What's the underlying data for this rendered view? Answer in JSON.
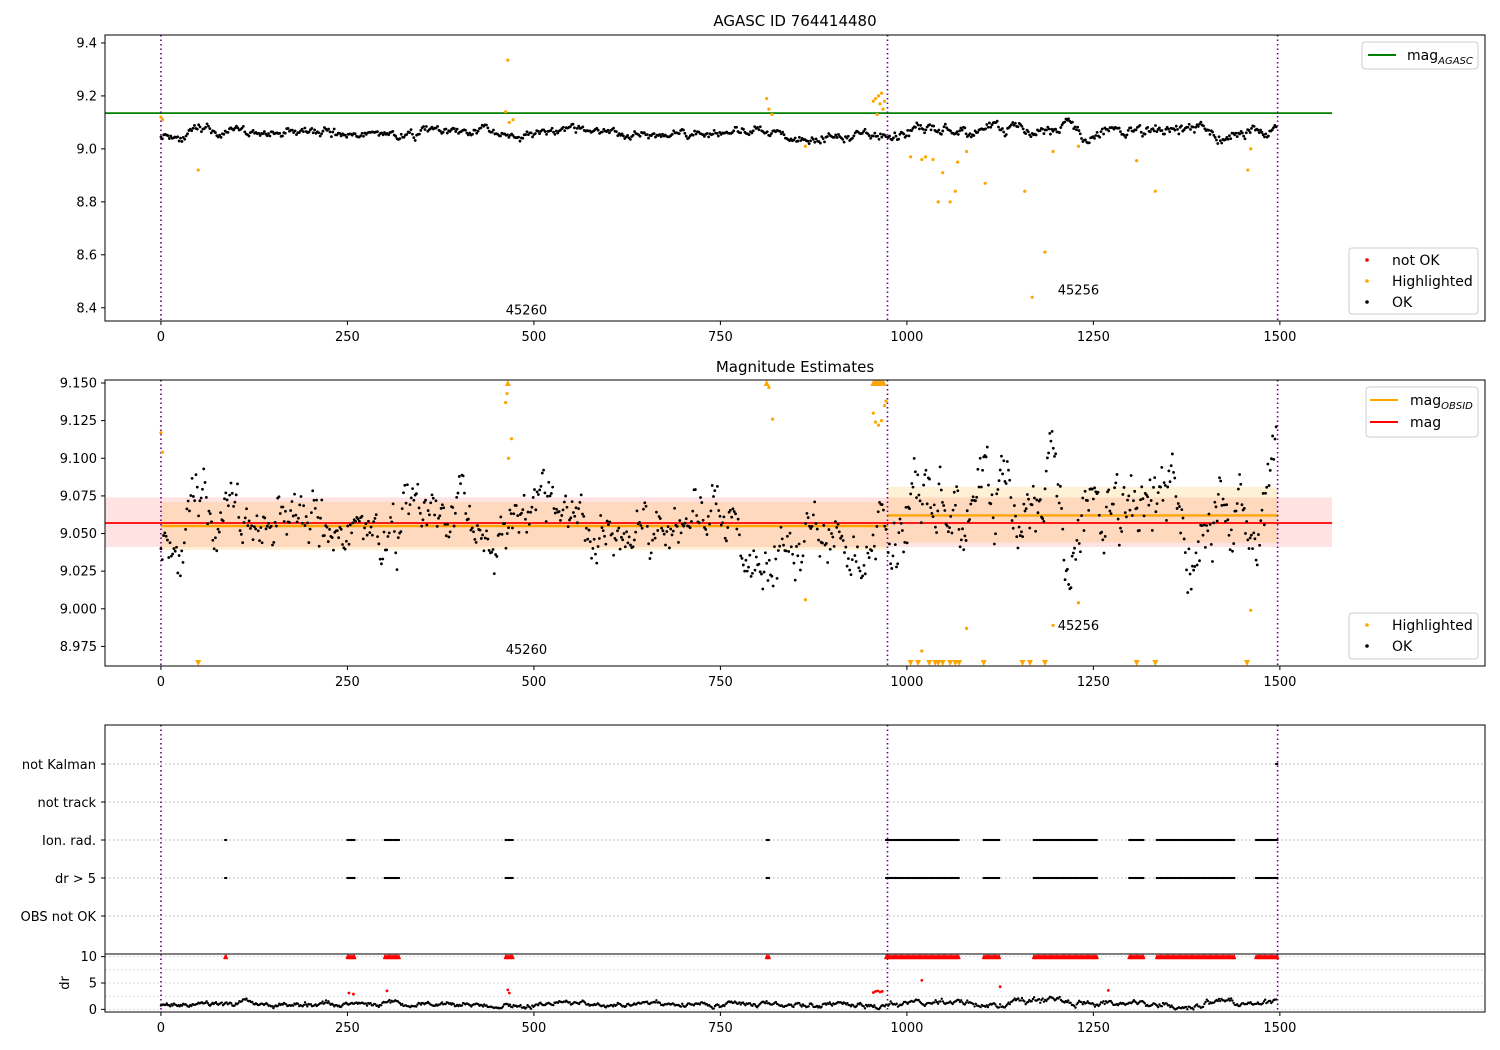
{
  "chart_data": [
    {
      "type": "scatter",
      "title": "AGASC ID 764414480",
      "xlim": [
        -75,
        1775
      ],
      "ylim": [
        8.35,
        9.43
      ],
      "xticks": [
        0,
        250,
        500,
        750,
        1000,
        1250,
        1500
      ],
      "yticks": [
        8.4,
        8.6,
        8.8,
        9.0,
        9.2,
        9.4
      ],
      "ytick_labels": [
        "8.4",
        "8.6",
        "8.8",
        "9.0",
        "9.2",
        "9.4"
      ],
      "obsid_boundaries": [
        0,
        974,
        1497
      ],
      "obsid_labels": [
        {
          "text": "45260",
          "x": 490,
          "y": 8.375
        },
        {
          "text": "45256",
          "x": 1230,
          "y": 8.45
        }
      ],
      "hline": {
        "name": "mag",
        "name_sub": "AGASC",
        "y": 9.135,
        "x": [
          -75,
          1570
        ],
        "color": "#008000"
      },
      "legend_top": [
        {
          "label": "mag",
          "label_sub": "AGASC",
          "style": "line",
          "color": "#008000"
        }
      ],
      "legend_bottom": [
        {
          "label": "not OK",
          "style": "dot",
          "color": "#ff0000"
        },
        {
          "label": "Highlighted",
          "style": "dot",
          "color": "#ffa500"
        },
        {
          "label": "OK",
          "style": "dot",
          "color": "#000000"
        }
      ],
      "highlighted": [
        [
          0,
          9.12
        ],
        [
          2,
          9.11
        ],
        [
          50,
          8.92
        ],
        [
          462,
          9.14
        ],
        [
          465,
          9.335
        ],
        [
          467,
          9.1
        ],
        [
          472,
          9.11
        ],
        [
          812,
          9.19
        ],
        [
          815,
          9.15
        ],
        [
          819,
          9.13
        ],
        [
          864,
          9.01
        ],
        [
          955,
          9.18
        ],
        [
          958,
          9.19
        ],
        [
          960,
          9.13
        ],
        [
          962,
          9.2
        ],
        [
          964,
          9.17
        ],
        [
          966,
          9.21
        ],
        [
          968,
          9.15
        ],
        [
          970,
          9.18
        ],
        [
          1005,
          8.97
        ],
        [
          1020,
          8.96
        ],
        [
          1025,
          8.97
        ],
        [
          1035,
          8.96
        ],
        [
          1042,
          8.8
        ],
        [
          1048,
          8.91
        ],
        [
          1058,
          8.8
        ],
        [
          1065,
          8.84
        ],
        [
          1068,
          8.95
        ],
        [
          1080,
          8.99
        ],
        [
          1105,
          8.87
        ],
        [
          1158,
          8.84
        ],
        [
          1168,
          8.44
        ],
        [
          1185,
          8.61
        ],
        [
          1196,
          8.99
        ],
        [
          1230,
          9.01
        ],
        [
          1308,
          8.955
        ],
        [
          1333,
          8.84
        ],
        [
          1457,
          8.92
        ],
        [
          1461,
          9.0
        ]
      ],
      "ok_segments": [
        {
          "x0": 0,
          "x1": 972,
          "n": 520,
          "base": 9.058,
          "amp": 0.028,
          "seed": 11
        },
        {
          "x0": 975,
          "x1": 1495,
          "n": 300,
          "base": 9.065,
          "amp": 0.035,
          "seed": 23
        }
      ]
    },
    {
      "type": "scatter",
      "title": "Magnitude Estimates",
      "xlim": [
        -75,
        1775
      ],
      "ylim": [
        8.962,
        9.152
      ],
      "xticks": [
        0,
        250,
        500,
        750,
        1000,
        1250,
        1500
      ],
      "yticks": [
        8.975,
        9.0,
        9.025,
        9.05,
        9.075,
        9.1,
        9.125,
        9.15
      ],
      "ytick_labels": [
        "8.975",
        "9.000",
        "9.025",
        "9.050",
        "9.075",
        "9.100",
        "9.125",
        "9.150"
      ],
      "obsid_boundaries": [
        0,
        974,
        1497
      ],
      "obsid_labels": [
        {
          "text": "45260",
          "x": 490,
          "y": 8.97
        },
        {
          "text": "45256",
          "x": 1230,
          "y": 8.986
        }
      ],
      "mag": {
        "y": 9.057,
        "band": [
          9.041,
          9.074
        ],
        "x": [
          -75,
          1570
        ],
        "color": "#ff0000"
      },
      "mag_obsid": [
        {
          "x": [
            0,
            974
          ],
          "y": 9.055,
          "band": [
            9.039,
            9.071
          ]
        },
        {
          "x": [
            974,
            1497
          ],
          "y": 9.062,
          "band": [
            9.044,
            9.081
          ]
        }
      ],
      "legend_top": [
        {
          "label": "mag",
          "label_sub": "OBSID",
          "style": "line",
          "color": "#ffa500"
        },
        {
          "label": "mag",
          "style": "line",
          "color": "#ff0000"
        }
      ],
      "legend_bottom": [
        {
          "label": "Highlighted",
          "style": "dot",
          "color": "#ffa500"
        },
        {
          "label": "OK",
          "style": "dot",
          "color": "#000000"
        }
      ],
      "highlighted": [
        [
          0,
          9.117
        ],
        [
          2,
          9.104
        ],
        [
          462,
          9.137
        ],
        [
          464,
          9.143
        ],
        [
          466,
          9.1
        ],
        [
          470,
          9.113
        ],
        [
          815,
          9.147
        ],
        [
          820,
          9.126
        ],
        [
          864,
          9.006
        ],
        [
          955,
          9.13
        ],
        [
          958,
          9.124
        ],
        [
          962,
          9.122
        ],
        [
          966,
          9.125
        ],
        [
          970,
          9.135
        ],
        [
          972,
          9.138
        ],
        [
          1020,
          8.972
        ],
        [
          1080,
          8.987
        ],
        [
          1196,
          8.989
        ],
        [
          1230,
          9.004
        ],
        [
          1461,
          8.999
        ]
      ],
      "clipped_top": [
        465,
        812,
        955,
        957,
        959,
        961,
        963,
        965,
        967,
        969
      ],
      "clipped_bottom": [
        50,
        1005,
        1015,
        1030,
        1038,
        1042,
        1048,
        1058,
        1065,
        1070,
        1103,
        1155,
        1165,
        1185,
        1308,
        1333,
        1456
      ],
      "ok_segments": [
        {
          "x0": 0,
          "x1": 972,
          "n": 560,
          "base": 9.054,
          "amp": 0.03,
          "seed": 11
        },
        {
          "x0": 975,
          "x1": 1495,
          "n": 330,
          "base": 9.062,
          "amp": 0.04,
          "seed": 23
        }
      ]
    },
    {
      "type": "flags",
      "xlim": [
        -75,
        1775
      ],
      "categories": [
        "not Kalman",
        "not track",
        "Ion. rad.",
        "dr > 5",
        "OBS not OK"
      ],
      "obsid_boundaries": [
        0,
        974,
        1497
      ],
      "flag_ranges": {
        "not Kalman": [
          [
            1495,
            1497
          ]
        ],
        "Ion. rad.": [
          [
            86,
            88
          ],
          [
            250,
            260
          ],
          [
            300,
            320
          ],
          [
            462,
            472
          ],
          [
            812,
            816
          ],
          [
            972,
            1070
          ],
          [
            1103,
            1125
          ],
          [
            1170,
            1255
          ],
          [
            1298,
            1318
          ],
          [
            1335,
            1440
          ],
          [
            1468,
            1497
          ]
        ],
        "dr > 5": [
          [
            86,
            88
          ],
          [
            250,
            260
          ],
          [
            300,
            320
          ],
          [
            462,
            472
          ],
          [
            812,
            816
          ],
          [
            972,
            1070
          ],
          [
            1103,
            1125
          ],
          [
            1170,
            1255
          ],
          [
            1298,
            1318
          ],
          [
            1335,
            1440
          ],
          [
            1468,
            1497
          ]
        ]
      }
    },
    {
      "type": "scatter",
      "ylabel": "dr",
      "xlim": [
        -75,
        1775
      ],
      "ylim": [
        -0.5,
        10.5
      ],
      "xticks": [
        0,
        250,
        500,
        750,
        1000,
        1250,
        1500
      ],
      "yticks": [
        0,
        5,
        10
      ],
      "ytick_labels": [
        "0",
        "5",
        "10"
      ],
      "obsid_boundaries": [
        0,
        974,
        1497
      ],
      "red_markers_y": 10,
      "red_marker_ranges": [
        [
          86,
          88
        ],
        [
          250,
          260
        ],
        [
          300,
          320
        ],
        [
          462,
          472
        ],
        [
          812,
          816
        ],
        [
          972,
          1070
        ],
        [
          1103,
          1125
        ],
        [
          1170,
          1255
        ],
        [
          1298,
          1318
        ],
        [
          1335,
          1440
        ],
        [
          1468,
          1497
        ]
      ],
      "red_points": [
        [
          252,
          3.1
        ],
        [
          258,
          2.9
        ],
        [
          303,
          3.5
        ],
        [
          465,
          3.7
        ],
        [
          467,
          3.1
        ],
        [
          955,
          3.2
        ],
        [
          958,
          3.4
        ],
        [
          961,
          3.5
        ],
        [
          964,
          3.3
        ],
        [
          967,
          3.4
        ],
        [
          1020,
          5.5
        ],
        [
          1125,
          4.3
        ],
        [
          1270,
          3.6
        ]
      ],
      "ok_segments": [
        {
          "x0": 0,
          "x1": 972,
          "n": 620,
          "base": 1.0,
          "amp": 0.7,
          "seed": 5
        },
        {
          "x0": 975,
          "x1": 1495,
          "n": 320,
          "base": 1.2,
          "amp": 0.9,
          "seed": 9
        }
      ]
    }
  ]
}
